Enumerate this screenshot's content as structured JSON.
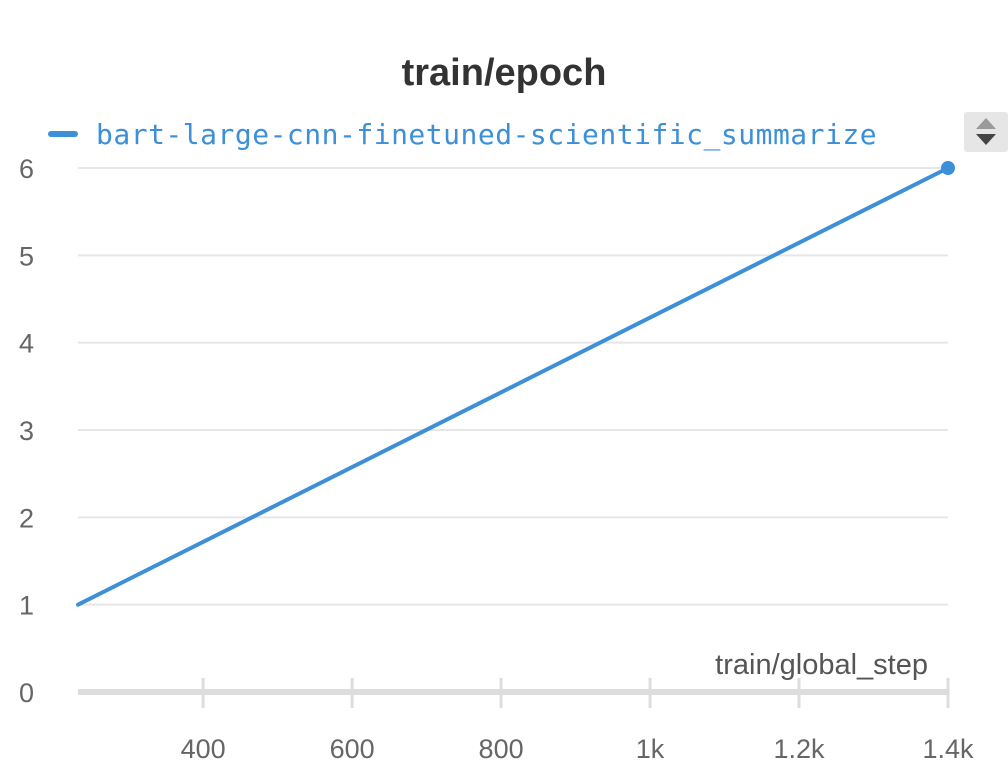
{
  "chart_data": {
    "type": "line",
    "title": "train/epoch",
    "xlabel": "train/global_step",
    "ylabel": "",
    "xlim": [
      232,
      1400
    ],
    "ylim": [
      0,
      6
    ],
    "x_ticks": [
      400,
      600,
      800,
      1000,
      1200,
      1400
    ],
    "x_tick_labels": [
      "400",
      "600",
      "800",
      "1k",
      "1.2k",
      "1.4k"
    ],
    "y_ticks": [
      0,
      1,
      2,
      3,
      4,
      5,
      6
    ],
    "y_tick_labels": [
      "0",
      "1",
      "2",
      "3",
      "4",
      "5",
      "6"
    ],
    "grid": true,
    "legend_position": "top-left",
    "series": [
      {
        "name": "bart-large-cnn-finetuned-scientific_summarize",
        "color": "#3d8fd8",
        "x": [
          232,
          1400
        ],
        "y": [
          1,
          6
        ]
      }
    ]
  },
  "legend_scroll": {
    "up_icon": "triangle-up-icon",
    "down_icon": "triangle-down-icon"
  }
}
